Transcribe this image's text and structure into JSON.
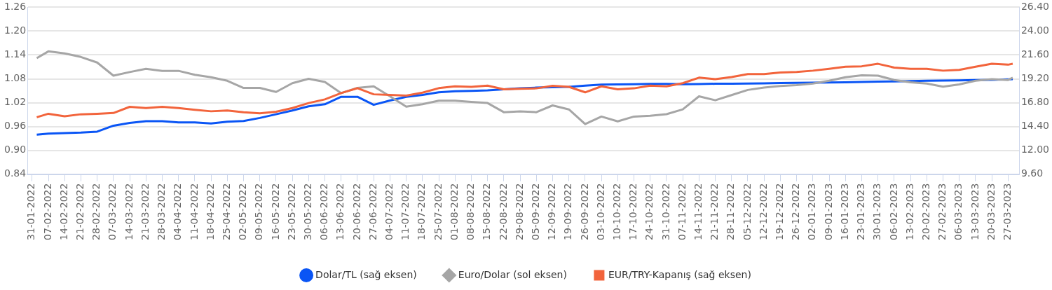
{
  "chart_data": {
    "type": "line",
    "x": [
      "2022-02-02",
      "2022-02-07",
      "2022-02-14",
      "2022-02-21",
      "2022-02-28",
      "2022-03-07",
      "2022-03-14",
      "2022-03-21",
      "2022-03-28",
      "2022-04-04",
      "2022-04-11",
      "2022-04-18",
      "2022-04-25",
      "2022-05-02",
      "2022-05-09",
      "2022-05-16",
      "2022-05-23",
      "2022-05-30",
      "2022-06-06",
      "2022-06-13",
      "2022-06-20",
      "2022-06-27",
      "2022-07-04",
      "2022-07-11",
      "2022-07-18",
      "2022-07-25",
      "2022-08-01",
      "2022-08-08",
      "2022-08-15",
      "2022-08-22",
      "2022-08-29",
      "2022-09-05",
      "2022-09-12",
      "2022-09-19",
      "2022-09-26",
      "2022-10-03",
      "2022-10-10",
      "2022-10-17",
      "2022-10-24",
      "2022-10-31",
      "2022-11-07",
      "2022-11-14",
      "2022-11-21",
      "2022-11-28",
      "2022-12-05",
      "2022-12-12",
      "2022-12-19",
      "2022-12-26",
      "2023-01-02",
      "2023-01-09",
      "2023-01-16",
      "2023-01-23",
      "2023-01-30",
      "2023-02-06",
      "2023-02-13",
      "2023-02-20",
      "2023-02-27",
      "2023-03-06",
      "2023-03-13",
      "2023-03-20",
      "2023-03-27",
      "2023-03-29"
    ],
    "series": [
      {
        "name": "Dolar/TL (sağ eksen)",
        "color": "#0a55f5",
        "axis": "y2",
        "values": [
          13.58,
          13.68,
          13.73,
          13.78,
          13.88,
          14.48,
          14.76,
          14.93,
          14.93,
          14.81,
          14.81,
          14.71,
          14.88,
          14.95,
          15.26,
          15.63,
          16.01,
          16.43,
          16.64,
          17.39,
          17.39,
          16.58,
          17.01,
          17.39,
          17.58,
          17.84,
          17.94,
          17.99,
          18.04,
          18.14,
          18.24,
          18.31,
          18.36,
          18.39,
          18.51,
          18.61,
          18.64,
          18.66,
          18.69,
          18.69,
          18.66,
          18.68,
          18.7,
          18.71,
          18.73,
          18.75,
          18.77,
          18.79,
          18.81,
          18.83,
          18.85,
          18.88,
          18.91,
          18.94,
          18.97,
          19.0,
          19.02,
          19.04,
          19.07,
          19.1,
          19.14,
          19.16
        ]
      },
      {
        "name": "Euro/Dolar (sol eksen)",
        "color": "#a6a6a6",
        "values": [
          1.132,
          1.149,
          1.144,
          1.135,
          1.121,
          1.088,
          1.097,
          1.105,
          1.1,
          1.1,
          1.09,
          1.084,
          1.075,
          1.057,
          1.057,
          1.047,
          1.069,
          1.08,
          1.072,
          1.044,
          1.057,
          1.061,
          1.036,
          1.01,
          1.016,
          1.025,
          1.025,
          1.022,
          1.019,
          0.996,
          0.998,
          0.996,
          1.013,
          1.003,
          0.966,
          0.985,
          0.973,
          0.985,
          0.987,
          0.991,
          1.003,
          1.036,
          1.026,
          1.039,
          1.052,
          1.058,
          1.062,
          1.064,
          1.068,
          1.075,
          1.084,
          1.089,
          1.088,
          1.077,
          1.071,
          1.068,
          1.06,
          1.066,
          1.075,
          1.079,
          1.077,
          1.083
        ]
      },
      {
        "name": "EUR/TRY-Kapanış (sağ eksen)",
        "color": "#f2643c",
        "axis": "y2",
        "values": [
          15.33,
          15.68,
          15.43,
          15.63,
          15.68,
          15.76,
          16.38,
          16.26,
          16.38,
          16.26,
          16.08,
          15.93,
          16.01,
          15.83,
          15.73,
          15.88,
          16.26,
          16.76,
          17.13,
          17.76,
          18.26,
          17.64,
          17.58,
          17.51,
          17.81,
          18.26,
          18.44,
          18.39,
          18.51,
          18.14,
          18.19,
          18.24,
          18.49,
          18.39,
          17.84,
          18.44,
          18.14,
          18.24,
          18.51,
          18.44,
          18.76,
          19.32,
          19.16,
          19.37,
          19.68,
          19.68,
          19.84,
          19.89,
          20.02,
          20.2,
          20.41,
          20.46,
          20.71,
          20.33,
          20.2,
          20.2,
          20.02,
          20.1,
          20.41,
          20.71,
          20.62,
          20.71
        ]
      }
    ],
    "xlim": [
      "2022-01-29",
      "2023-04-01"
    ],
    "xticks": [
      {
        "value": "2022-01-31",
        "label": "31-01-2022"
      },
      {
        "value": "2022-02-07",
        "label": "07-02-2022"
      },
      {
        "value": "2022-02-14",
        "label": "14-02-2022"
      },
      {
        "value": "2022-02-21",
        "label": "21-02-2022"
      },
      {
        "value": "2022-02-28",
        "label": "28-02-2022"
      },
      {
        "value": "2022-03-07",
        "label": "07-03-2022"
      },
      {
        "value": "2022-03-14",
        "label": "14-03-2022"
      },
      {
        "value": "2022-03-21",
        "label": "21-03-2022"
      },
      {
        "value": "2022-03-28",
        "label": "28-03-2022"
      },
      {
        "value": "2022-04-04",
        "label": "04-04-2022"
      },
      {
        "value": "2022-04-11",
        "label": "11-04-2022"
      },
      {
        "value": "2022-04-18",
        "label": "18-04-2022"
      },
      {
        "value": "2022-04-25",
        "label": "25-04-2022"
      },
      {
        "value": "2022-05-02",
        "label": "02-05-2022"
      },
      {
        "value": "2022-05-09",
        "label": "09-05-2022"
      },
      {
        "value": "2022-05-16",
        "label": "16-05-2022"
      },
      {
        "value": "2022-05-23",
        "label": "23-05-2022"
      },
      {
        "value": "2022-05-30",
        "label": "30-05-2022"
      },
      {
        "value": "2022-06-06",
        "label": "06-06-2022"
      },
      {
        "value": "2022-06-13",
        "label": "13-06-2022"
      },
      {
        "value": "2022-06-20",
        "label": "20-06-2022"
      },
      {
        "value": "2022-06-27",
        "label": "27-06-2022"
      },
      {
        "value": "2022-07-04",
        "label": "04-07-2022"
      },
      {
        "value": "2022-07-11",
        "label": "11-07-2022"
      },
      {
        "value": "2022-07-18",
        "label": "18-07-2022"
      },
      {
        "value": "2022-07-25",
        "label": "25-07-2022"
      },
      {
        "value": "2022-08-01",
        "label": "01-08-2022"
      },
      {
        "value": "2022-08-08",
        "label": "08-08-2022"
      },
      {
        "value": "2022-08-15",
        "label": "15-08-2022"
      },
      {
        "value": "2022-08-22",
        "label": "22-08-2022"
      },
      {
        "value": "2022-08-29",
        "label": "29-08-2022"
      },
      {
        "value": "2022-09-05",
        "label": "05-09-2022"
      },
      {
        "value": "2022-09-12",
        "label": "12-09-2022"
      },
      {
        "value": "2022-09-19",
        "label": "19-09-2022"
      },
      {
        "value": "2022-09-26",
        "label": "26-09-2022"
      },
      {
        "value": "2022-10-03",
        "label": "03-10-2022"
      },
      {
        "value": "2022-10-10",
        "label": "10-10-2022"
      },
      {
        "value": "2022-10-17",
        "label": "17-10-2022"
      },
      {
        "value": "2022-10-24",
        "label": "24-10-2022"
      },
      {
        "value": "2022-10-31",
        "label": "31-10-2022"
      },
      {
        "value": "2022-11-07",
        "label": "07-11-2022"
      },
      {
        "value": "2022-11-14",
        "label": "14-11-2022"
      },
      {
        "value": "2022-11-21",
        "label": "21-11-2022"
      },
      {
        "value": "2022-11-28",
        "label": "28-11-2022"
      },
      {
        "value": "2022-12-05",
        "label": "05-12-2022"
      },
      {
        "value": "2022-12-12",
        "label": "12-12-2022"
      },
      {
        "value": "2022-12-19",
        "label": "19-12-2022"
      },
      {
        "value": "2022-12-26",
        "label": "26-12-2022"
      },
      {
        "value": "2023-01-02",
        "label": "02-01-2023"
      },
      {
        "value": "2023-01-09",
        "label": "09-01-2023"
      },
      {
        "value": "2023-01-16",
        "label": "16-01-2023"
      },
      {
        "value": "2023-01-23",
        "label": "23-01-2023"
      },
      {
        "value": "2023-01-30",
        "label": "30-01-2023"
      },
      {
        "value": "2023-02-06",
        "label": "06-02-2023"
      },
      {
        "value": "2023-02-13",
        "label": "13-02-2023"
      },
      {
        "value": "2023-02-20",
        "label": "20-02-2023"
      },
      {
        "value": "2023-02-27",
        "label": "27-02-2023"
      },
      {
        "value": "2023-03-06",
        "label": "06-03-2023"
      },
      {
        "value": "2023-03-13",
        "label": "13-03-2023"
      },
      {
        "value": "2023-03-20",
        "label": "20-03-2023"
      },
      {
        "value": "2023-03-27",
        "label": "27-03-2023"
      }
    ],
    "ylim": [
      0.84,
      1.26
    ],
    "yticks": [
      {
        "value": 0.84,
        "label": "0.84"
      },
      {
        "value": 0.9,
        "label": "0.90"
      },
      {
        "value": 0.96,
        "label": "0.96"
      },
      {
        "value": 1.02,
        "label": "1.02"
      },
      {
        "value": 1.08,
        "label": "1.08"
      },
      {
        "value": 1.14,
        "label": "1.14"
      },
      {
        "value": 1.2,
        "label": "1.20"
      },
      {
        "value": 1.26,
        "label": "1.26"
      }
    ],
    "y2lim": [
      9.6,
      26.4
    ],
    "y2ticks": [
      {
        "value": 9.6,
        "label": "9.60"
      },
      {
        "value": 12,
        "label": "12.00"
      },
      {
        "value": 14.4,
        "label": "14.40"
      },
      {
        "value": 16.8,
        "label": "16.80"
      },
      {
        "value": 19.2,
        "label": "19.20"
      },
      {
        "value": 21.6,
        "label": "21.60"
      },
      {
        "value": 24,
        "label": "24.00"
      },
      {
        "value": 26.4,
        "label": "26.40"
      }
    ],
    "grid": "y",
    "legend": "bottom",
    "line_style": "solid"
  }
}
